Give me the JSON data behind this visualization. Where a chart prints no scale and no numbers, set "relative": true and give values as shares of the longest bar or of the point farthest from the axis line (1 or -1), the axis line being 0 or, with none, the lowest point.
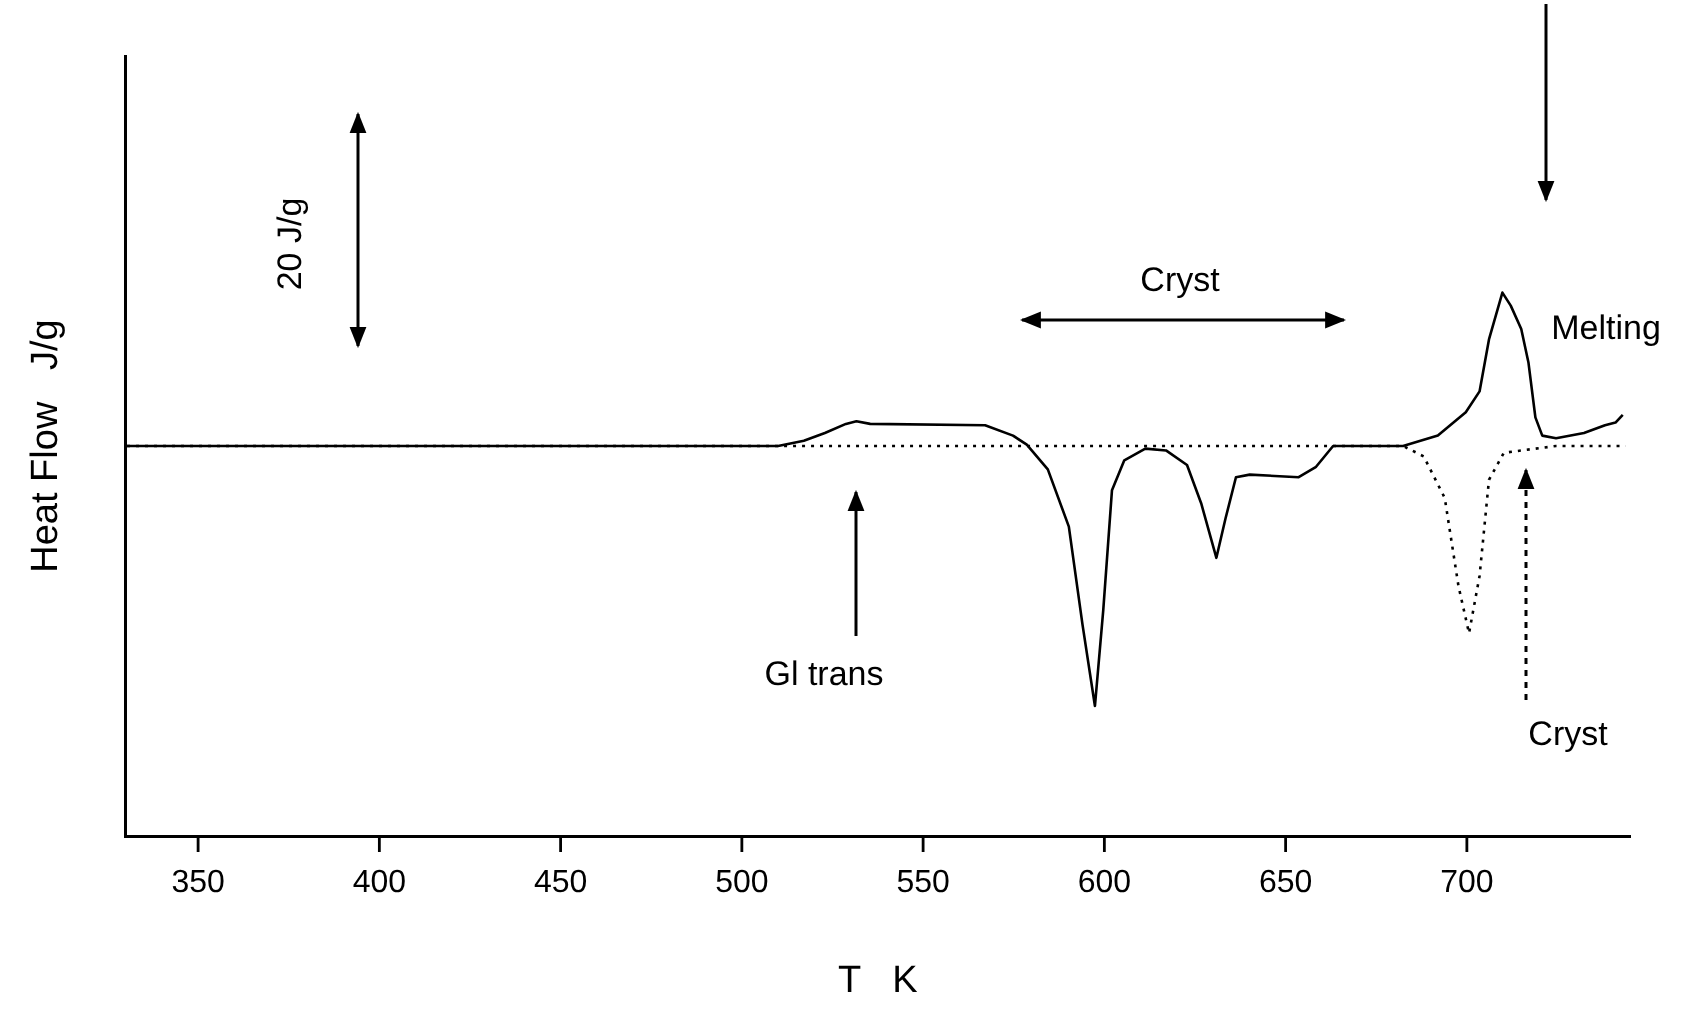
{
  "chart_data": {
    "type": "line",
    "relative": true,
    "xlabel": "T   K",
    "ylabel": "Heat Flow   J/g",
    "xlim": [
      330,
      745
    ],
    "xticks": [
      350,
      400,
      450,
      500,
      550,
      600,
      650,
      700
    ],
    "legend": false,
    "grid": false,
    "marker": "none",
    "annotations": [
      "20 J/g",
      "Cryst",
      "Melting",
      "Gl trans",
      "Cryst"
    ],
    "series": [
      {
        "color": "#000000",
        "line_style": "solid",
        "x": [
          330.4,
          510.0,
          517.1,
          522.9,
          528.7,
          531.6,
          535.4,
          567.1,
          574.8,
          578.6,
          584.4,
          590.2,
          594.0,
          597.4,
          599.7,
          602.1,
          605.5,
          611.3,
          617.0,
          622.8,
          626.7,
          630.9,
          633.4,
          636.3,
          640.1,
          653.6,
          658.4,
          663.1,
          682.4,
          692.0,
          699.7,
          703.5,
          706.1,
          709.8,
          712.1,
          715.0,
          717.0,
          718.9,
          720.8,
          724.6,
          732.3,
          738.1,
          741.0,
          743.0
        ],
        "values": [
          0,
          0,
          0.02,
          0.05,
          0.085,
          0.095,
          0.085,
          0.08,
          0.04,
          0.005,
          -0.09,
          -0.31,
          -0.69,
          -1,
          -0.63,
          -0.17,
          -0.055,
          -0.01,
          -0.017,
          -0.073,
          -0.22,
          -0.43,
          -0.28,
          -0.12,
          -0.11,
          -0.12,
          -0.08,
          0,
          0,
          0.04,
          0.13,
          0.21,
          0.41,
          0.59,
          0.54,
          0.45,
          0.32,
          0.11,
          0.04,
          0.03,
          0.05,
          0.08,
          0.09,
          0.12
        ]
      },
      {
        "color": "#000000",
        "line_style": "dotted",
        "x": [
          330.4,
          682.4,
          688.1,
          693.9,
          697.7,
          700.6,
          703.5,
          706.1,
          710.2,
          724.6,
          743.8
        ],
        "values": [
          0,
          0,
          -0.04,
          -0.2,
          -0.54,
          -0.72,
          -0.5,
          -0.13,
          -0.026,
          0,
          0
        ]
      }
    ]
  }
}
